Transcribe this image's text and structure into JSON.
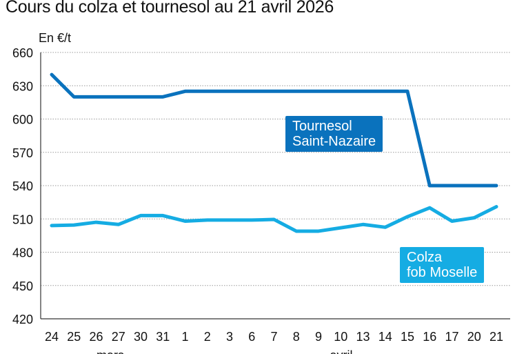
{
  "chart_data": {
    "type": "line",
    "title": "Cours du colza et tournesol au 21 avril 2026",
    "ylabel": "En €/t",
    "ylim": [
      420,
      660
    ],
    "yticks": [
      420,
      450,
      480,
      510,
      540,
      570,
      600,
      630,
      660
    ],
    "grid": true,
    "categories": [
      "24",
      "25",
      "26",
      "27",
      "30",
      "31",
      "1",
      "2",
      "3",
      "6",
      "7",
      "8",
      "9",
      "10",
      "13",
      "14",
      "15",
      "16",
      "17",
      "20",
      "21"
    ],
    "months": [
      {
        "label": "mars"
      },
      {
        "label": "avril"
      }
    ],
    "series": [
      {
        "name": "Tournesol Saint-Nazaire",
        "label_lines": [
          "Tournesol",
          "Saint-Nazaire"
        ],
        "color": "#0a72bd",
        "values": [
          640,
          620,
          620,
          620,
          620,
          620,
          625,
          625,
          625,
          625,
          625,
          625,
          625,
          625,
          625,
          625,
          625,
          540,
          540,
          540,
          540
        ]
      },
      {
        "name": "Colza fob Moselle",
        "label_lines": [
          "Colza",
          "fob Moselle"
        ],
        "color": "#15ace3",
        "values": [
          504,
          504.5,
          507,
          505,
          513,
          513,
          508,
          509,
          509,
          509,
          509.5,
          499,
          499,
          502,
          505,
          502.5,
          512,
          520,
          508,
          511,
          521
        ]
      }
    ]
  }
}
